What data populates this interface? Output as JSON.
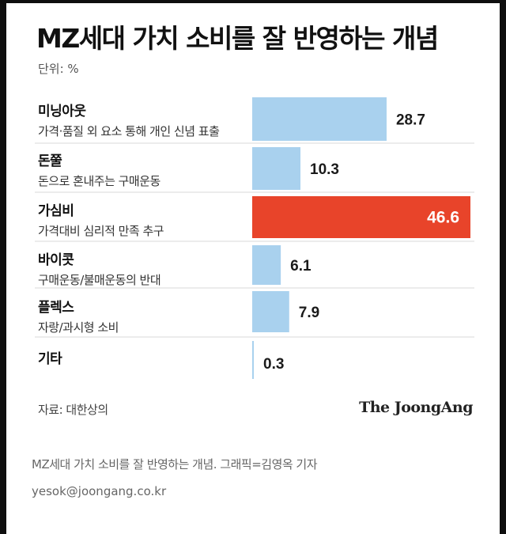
{
  "chart_data": {
    "type": "bar",
    "orientation": "horizontal",
    "title": "MZ세대 가치 소비를 잘 반영하는 개념",
    "unit_label": "단위: %",
    "categories": [
      "미닝아웃",
      "돈쭐",
      "가심비",
      "바이콧",
      "플렉스",
      "기타"
    ],
    "descriptions": [
      "가격·품질 외 요소 통해 개인 신념 표출",
      "돈으로 혼내주는 구매운동",
      "가격대비 심리적 만족 추구",
      "구매운동/불매운동의 반대",
      "자랑/과시형 소비",
      ""
    ],
    "values": [
      28.7,
      10.3,
      46.6,
      6.1,
      7.9,
      0.3
    ],
    "value_labels": [
      "28.7",
      "10.3",
      "46.6",
      "6.1",
      "7.9",
      "0.3"
    ],
    "highlight_index": 2,
    "xlim": [
      0,
      46.6
    ],
    "colors": {
      "bar": "#a9d1ee",
      "highlight": "#e8442a",
      "label": "#1a1a1a",
      "highlight_label": "#ffffff",
      "separator": "#d8d8d8"
    },
    "source": "자료: 대한상의",
    "brand": "The JoongAng"
  },
  "caption": "MZ세대 가치 소비를 잘 반영하는 개념. 그래픽=김영옥 기자",
  "email": "yesok@joongang.co.kr"
}
